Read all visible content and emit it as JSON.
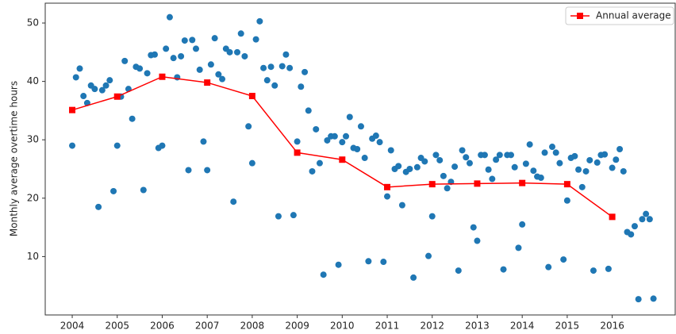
{
  "chart_data": {
    "type": "scatter",
    "ylabel": "Monthly average overtime hours",
    "xlim": [
      2003.4,
      2017.4
    ],
    "xticks": [
      2004,
      2005,
      2006,
      2007,
      2008,
      2009,
      2010,
      2011,
      2012,
      2013,
      2014,
      2015,
      2016
    ],
    "ylim": [
      0,
      53.4
    ],
    "yticks": [
      10,
      20,
      30,
      40,
      50
    ],
    "legend": "upper right",
    "series": [
      {
        "type": "scatter",
        "color": "#1f77b4",
        "x": [
          2004,
          2004.083,
          2004.167,
          2004.25,
          2004.333,
          2004.417,
          2004.5,
          2004.583,
          2004.667,
          2004.75,
          2004.833,
          2004.917,
          2005,
          2005.083,
          2005.167,
          2005.25,
          2005.333,
          2005.417,
          2005.5,
          2005.583,
          2005.667,
          2005.75,
          2005.833,
          2005.917,
          2006,
          2006.083,
          2006.167,
          2006.25,
          2006.333,
          2006.417,
          2006.5,
          2006.583,
          2006.667,
          2006.75,
          2006.833,
          2006.917,
          2007,
          2007.083,
          2007.167,
          2007.25,
          2007.333,
          2007.417,
          2007.5,
          2007.583,
          2007.667,
          2007.75,
          2007.833,
          2007.917,
          2008,
          2008.083,
          2008.167,
          2008.25,
          2008.333,
          2008.417,
          2008.5,
          2008.583,
          2008.667,
          2008.75,
          2008.833,
          2008.917,
          2009,
          2009.083,
          2009.167,
          2009.25,
          2009.333,
          2009.417,
          2009.5,
          2009.583,
          2009.667,
          2009.75,
          2009.833,
          2009.917,
          2010,
          2010.083,
          2010.167,
          2010.25,
          2010.333,
          2010.417,
          2010.5,
          2010.583,
          2010.667,
          2010.75,
          2010.833,
          2010.917,
          2011,
          2011.083,
          2011.167,
          2011.25,
          2011.333,
          2011.417,
          2011.5,
          2011.583,
          2011.667,
          2011.75,
          2011.833,
          2011.917,
          2012,
          2012.083,
          2012.167,
          2012.25,
          2012.333,
          2012.417,
          2012.5,
          2012.583,
          2012.667,
          2012.75,
          2012.833,
          2012.917,
          2013,
          2013.083,
          2013.167,
          2013.25,
          2013.333,
          2013.417,
          2013.5,
          2013.583,
          2013.667,
          2013.75,
          2013.833,
          2013.917,
          2014,
          2014.083,
          2014.167,
          2014.25,
          2014.333,
          2014.417,
          2014.5,
          2014.583,
          2014.667,
          2014.75,
          2014.833,
          2014.917,
          2015,
          2015.083,
          2015.167,
          2015.25,
          2015.333,
          2015.417,
          2015.5,
          2015.583,
          2015.667,
          2015.75,
          2015.833,
          2015.917,
          2016,
          2016.083,
          2016.167,
          2016.25,
          2016.333,
          2016.417,
          2016.5,
          2016.583,
          2016.667,
          2016.75,
          2016.833,
          2016.917
        ],
        "values": [
          29.0,
          40.7,
          42.2,
          37.5,
          36.3,
          39.3,
          38.7,
          18.5,
          38.5,
          39.3,
          40.2,
          21.2,
          29.0,
          37.4,
          43.5,
          38.7,
          33.6,
          42.5,
          42.2,
          21.4,
          41.4,
          44.5,
          44.6,
          28.6,
          29.0,
          45.6,
          51.0,
          44.0,
          40.7,
          44.3,
          47.0,
          24.8,
          47.1,
          45.6,
          42.0,
          29.7,
          24.8,
          42.9,
          47.4,
          41.2,
          40.4,
          45.6,
          45.0,
          19.4,
          45.0,
          48.2,
          44.3,
          32.3,
          26.0,
          47.2,
          50.3,
          42.3,
          40.2,
          42.5,
          39.3,
          16.9,
          42.6,
          44.6,
          42.3,
          17.1,
          29.7,
          39.1,
          41.6,
          35.0,
          24.6,
          31.8,
          26.0,
          6.9,
          29.9,
          30.6,
          30.6,
          8.6,
          29.6,
          30.6,
          33.9,
          28.6,
          28.4,
          32.3,
          26.9,
          9.2,
          30.2,
          30.7,
          29.6,
          9.1,
          20.3,
          28.2,
          25.0,
          25.5,
          18.8,
          24.5,
          25.0,
          6.4,
          25.3,
          26.9,
          26.3,
          10.1,
          16.9,
          27.4,
          26.5,
          23.8,
          21.7,
          22.8,
          25.4,
          7.6,
          28.2,
          27.0,
          26.0,
          15.0,
          12.7,
          27.4,
          27.4,
          24.9,
          23.3,
          26.6,
          27.4,
          7.8,
          27.4,
          27.4,
          25.3,
          11.5,
          15.5,
          25.9,
          29.2,
          24.7,
          23.7,
          23.5,
          27.8,
          8.2,
          28.8,
          27.8,
          26.0,
          9.5,
          19.6,
          26.9,
          27.2,
          24.9,
          21.9,
          24.6,
          26.5,
          7.6,
          26.1,
          27.4,
          27.5,
          7.9,
          25.2,
          26.6,
          28.4,
          24.6,
          14.2,
          13.8,
          15.2,
          2.7,
          16.4,
          17.3,
          16.4,
          2.8
        ]
      },
      {
        "type": "line",
        "name": "Annual average",
        "color": "#ff0000",
        "x": [
          2004,
          2005,
          2006,
          2007,
          2008,
          2009,
          2010,
          2011,
          2012,
          2013,
          2014,
          2015,
          2016
        ],
        "values": [
          35.1,
          37.4,
          40.8,
          39.8,
          37.5,
          27.8,
          26.6,
          21.9,
          22.4,
          22.5,
          22.6,
          22.4,
          16.8
        ]
      }
    ]
  }
}
